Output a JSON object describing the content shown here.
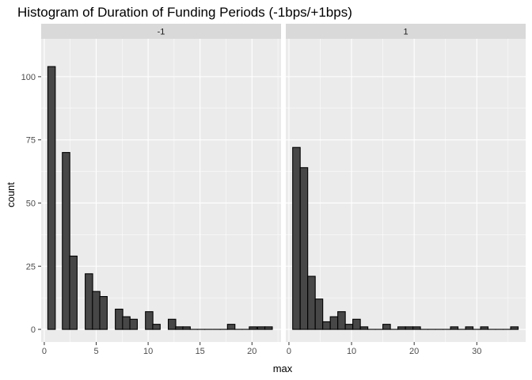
{
  "chart_data": {
    "type": "bar",
    "title": "Histogram of Duration of Funding Periods (-1bps/+1bps)",
    "xlabel": "max",
    "ylabel": "count",
    "ylim": [
      -5,
      115
    ],
    "yticks": [
      0,
      25,
      50,
      75,
      100
    ],
    "grid": true,
    "legend": "none",
    "colors": {
      "panel_bg": "#ebebeb",
      "strip_bg": "#d9d9d9",
      "grid": "#ffffff",
      "bar_fill": "#474747",
      "bar_stroke": "#000000"
    },
    "panels": [
      {
        "label": "-1",
        "xlim": [
          -0.3,
          22.8
        ],
        "xticks": [
          0,
          5,
          10,
          15,
          20
        ],
        "bin_width": 0.72,
        "bins": [
          {
            "x": 0.7,
            "count": 104
          },
          {
            "x": 2.1,
            "count": 70
          },
          {
            "x": 2.8,
            "count": 29
          },
          {
            "x": 4.3,
            "count": 22
          },
          {
            "x": 5.0,
            "count": 15
          },
          {
            "x": 5.7,
            "count": 13
          },
          {
            "x": 7.2,
            "count": 8
          },
          {
            "x": 7.9,
            "count": 5
          },
          {
            "x": 8.6,
            "count": 4
          },
          {
            "x": 10.1,
            "count": 7
          },
          {
            "x": 10.8,
            "count": 2
          },
          {
            "x": 12.3,
            "count": 4
          },
          {
            "x": 13.0,
            "count": 1
          },
          {
            "x": 13.7,
            "count": 1
          },
          {
            "x": 14.4,
            "count": 0
          },
          {
            "x": 15.1,
            "count": 0
          },
          {
            "x": 15.8,
            "count": 0
          },
          {
            "x": 16.6,
            "count": 0
          },
          {
            "x": 17.3,
            "count": 0
          },
          {
            "x": 18.0,
            "count": 2
          },
          {
            "x": 18.7,
            "count": 0
          },
          {
            "x": 19.4,
            "count": 0
          },
          {
            "x": 20.1,
            "count": 1
          },
          {
            "x": 20.9,
            "count": 1
          },
          {
            "x": 21.6,
            "count": 1
          }
        ]
      },
      {
        "label": "1",
        "xlim": [
          -0.5,
          37.8
        ],
        "xticks": [
          0,
          10,
          20,
          30
        ],
        "bin_width": 1.2,
        "bins": [
          {
            "x": 1.2,
            "count": 72
          },
          {
            "x": 2.4,
            "count": 64
          },
          {
            "x": 3.6,
            "count": 21
          },
          {
            "x": 4.8,
            "count": 12
          },
          {
            "x": 6.0,
            "count": 3
          },
          {
            "x": 7.2,
            "count": 5
          },
          {
            "x": 8.4,
            "count": 7
          },
          {
            "x": 9.6,
            "count": 2
          },
          {
            "x": 10.8,
            "count": 4
          },
          {
            "x": 12.0,
            "count": 1
          },
          {
            "x": 13.2,
            "count": 0
          },
          {
            "x": 14.4,
            "count": 0
          },
          {
            "x": 15.6,
            "count": 2
          },
          {
            "x": 16.8,
            "count": 0
          },
          {
            "x": 18.0,
            "count": 1
          },
          {
            "x": 19.2,
            "count": 1
          },
          {
            "x": 20.4,
            "count": 1
          },
          {
            "x": 21.6,
            "count": 0
          },
          {
            "x": 22.8,
            "count": 0
          },
          {
            "x": 24.0,
            "count": 0
          },
          {
            "x": 25.2,
            "count": 0
          },
          {
            "x": 26.4,
            "count": 1
          },
          {
            "x": 27.6,
            "count": 0
          },
          {
            "x": 28.8,
            "count": 1
          },
          {
            "x": 30.0,
            "count": 0
          },
          {
            "x": 31.2,
            "count": 1
          },
          {
            "x": 32.4,
            "count": 0
          },
          {
            "x": 33.6,
            "count": 0
          },
          {
            "x": 34.8,
            "count": 0
          },
          {
            "x": 36.0,
            "count": 1
          }
        ]
      }
    ]
  }
}
